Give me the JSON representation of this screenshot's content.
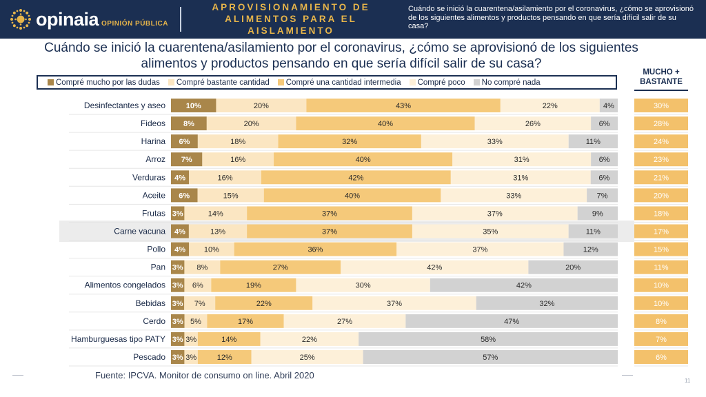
{
  "header": {
    "brand": "opinaia",
    "brand_sub": "OPINIÓN PÚBLICA",
    "title": "APROVISIONAMIENTO DE\nALIMENTOS PARA EL\nAISLAMIENTO",
    "question": "Cuándo se inició la cuarentena/asilamiento por el coronavirus, ¿cómo se aprovisionó de los siguientes alimentos y productos pensando en que sería difícil salir de su casa?"
  },
  "main_question": "Cuándo se inició la cuarentena/asilamiento por el coronavirus, ¿cómo se aprovisionó de los siguientes alimentos y productos pensando en que sería difícil salir de su casa?",
  "summary_header": "MUCHO + BASTANTE",
  "footer": {
    "source": "Fuente: IPCVA. Monitor de consumo on line. Abril 2020",
    "page": "11"
  },
  "colors": {
    "mucho": "#a9864a",
    "bastante": "#fbe6c2",
    "intermedia": "#f5c97a",
    "poco": "#fdf0d9",
    "nada": "#d2d2d2",
    "summary": "#f3c16b",
    "navy": "#1b2f52",
    "gold": "#e7b54a"
  },
  "chart_data": {
    "type": "bar",
    "orientation": "horizontal",
    "stacked": true,
    "percent": true,
    "title": "Cuándo se inició la cuarentena/asilamiento por el coronavirus, ¿cómo se aprovisionó de los siguientes alimentos y productos pensando en que sería difícil salir de su casa?",
    "categories": [
      "Desinfectantes y aseo",
      "Fideos",
      "Harina",
      "Arroz",
      "Verduras",
      "Aceite",
      "Frutas",
      "Carne vacuna",
      "Pollo",
      "Pan",
      "Alimentos congelados",
      "Bebidas",
      "Cerdo",
      "Hamburguesas tipo PATY",
      "Pescado"
    ],
    "series": [
      {
        "name": "Compré mucho por las dudas",
        "values": [
          10,
          8,
          6,
          7,
          4,
          6,
          3,
          4,
          4,
          3,
          3,
          3,
          3,
          3,
          3
        ]
      },
      {
        "name": "Compré bastante cantidad",
        "values": [
          20,
          20,
          18,
          16,
          16,
          15,
          14,
          13,
          10,
          8,
          6,
          7,
          5,
          3,
          3
        ]
      },
      {
        "name": "Compré una cantidad intermedia",
        "values": [
          43,
          40,
          32,
          40,
          42,
          40,
          37,
          37,
          36,
          27,
          19,
          22,
          17,
          14,
          12
        ]
      },
      {
        "name": "Compré poco",
        "values": [
          22,
          26,
          33,
          31,
          31,
          33,
          37,
          35,
          37,
          42,
          30,
          37,
          27,
          22,
          25
        ]
      },
      {
        "name": "No compré nada",
        "values": [
          4,
          6,
          11,
          6,
          6,
          7,
          9,
          11,
          12,
          20,
          42,
          32,
          47,
          58,
          57
        ]
      }
    ],
    "summary": {
      "name": "MUCHO + BASTANTE",
      "values": [
        30,
        28,
        24,
        23,
        21,
        20,
        18,
        17,
        15,
        11,
        10,
        10,
        8,
        7,
        6
      ]
    },
    "legend": "top",
    "grid": false
  }
}
